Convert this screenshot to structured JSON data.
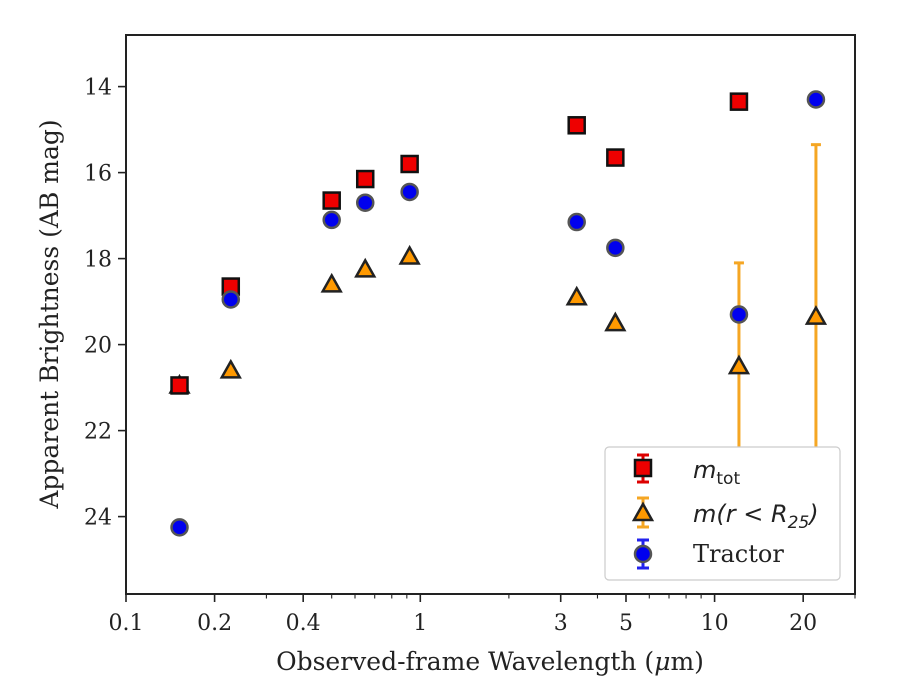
{
  "chart_data": {
    "type": "scatter",
    "xlabel_pre": "Observed-frame Wavelength (",
    "xlabel_mu": "μ",
    "xlabel_post": "m)",
    "ylabel": "Apparent Brightness (AB mag)",
    "xscale": "log",
    "xlim": [
      0.1,
      30
    ],
    "ylim": [
      25.8,
      12.8
    ],
    "y_inverted": true,
    "x_ticks": [
      {
        "value": 0.1,
        "label": "0.1"
      },
      {
        "value": 0.2,
        "label": "0.2"
      },
      {
        "value": 0.4,
        "label": "0.4"
      },
      {
        "value": 1,
        "label": "1"
      },
      {
        "value": 3,
        "label": "3"
      },
      {
        "value": 5,
        "label": "5"
      },
      {
        "value": 10,
        "label": "10"
      },
      {
        "value": 20,
        "label": "20"
      }
    ],
    "y_ticks": [
      {
        "value": 14,
        "label": "14"
      },
      {
        "value": 16,
        "label": "16"
      },
      {
        "value": 18,
        "label": "18"
      },
      {
        "value": 20,
        "label": "20"
      },
      {
        "value": 22,
        "label": "22"
      },
      {
        "value": 24,
        "label": "24"
      }
    ],
    "grid": false,
    "legend_placement": "lower-right",
    "series": [
      {
        "name": "m_tot",
        "marker": "square",
        "fill": "#ee0000",
        "edge": "#111111",
        "errcolor": "#dd0000",
        "points": [
          {
            "x": 0.152,
            "y": 20.95
          },
          {
            "x": 0.227,
            "y": 18.65
          },
          {
            "x": 0.5,
            "y": 16.65
          },
          {
            "x": 0.65,
            "y": 16.15
          },
          {
            "x": 0.92,
            "y": 15.8
          },
          {
            "x": 3.4,
            "y": 14.9
          },
          {
            "x": 4.6,
            "y": 15.65
          },
          {
            "x": 12.1,
            "y": 14.35
          }
        ]
      },
      {
        "name": "m(r < R25)",
        "marker": "triangle",
        "fill": "#ff9900",
        "edge": "#222222",
        "errcolor": "#f5a623",
        "points": [
          {
            "x": 0.152,
            "y": 20.95
          },
          {
            "x": 0.227,
            "y": 20.6
          },
          {
            "x": 0.5,
            "y": 18.6
          },
          {
            "x": 0.65,
            "y": 18.25
          },
          {
            "x": 0.92,
            "y": 17.95
          },
          {
            "x": 3.4,
            "y": 18.9
          },
          {
            "x": 4.6,
            "y": 19.5
          },
          {
            "x": 12.1,
            "y": 20.5,
            "yerr_low": 18.1,
            "yerr_high": 22.9
          },
          {
            "x": 22.1,
            "y": 19.35,
            "yerr_low": 15.35,
            "yerr_high": 23.4
          }
        ]
      },
      {
        "name": "Tractor",
        "marker": "circle",
        "fill": "#0000ee",
        "edge": "#555555",
        "errcolor": "#2222ee",
        "points": [
          {
            "x": 0.152,
            "y": 24.25
          },
          {
            "x": 0.227,
            "y": 18.95
          },
          {
            "x": 0.5,
            "y": 17.1
          },
          {
            "x": 0.65,
            "y": 16.7
          },
          {
            "x": 0.92,
            "y": 16.45
          },
          {
            "x": 3.4,
            "y": 17.15
          },
          {
            "x": 4.6,
            "y": 17.75
          },
          {
            "x": 12.1,
            "y": 19.3
          },
          {
            "x": 22.1,
            "y": 14.3
          }
        ]
      }
    ],
    "legend": {
      "mtot_m": "m",
      "mtot_sub": "tot",
      "mr_pre": "m(r < R",
      "mr_sub": "25",
      "mr_post": ")",
      "tractor": "Tractor"
    }
  }
}
